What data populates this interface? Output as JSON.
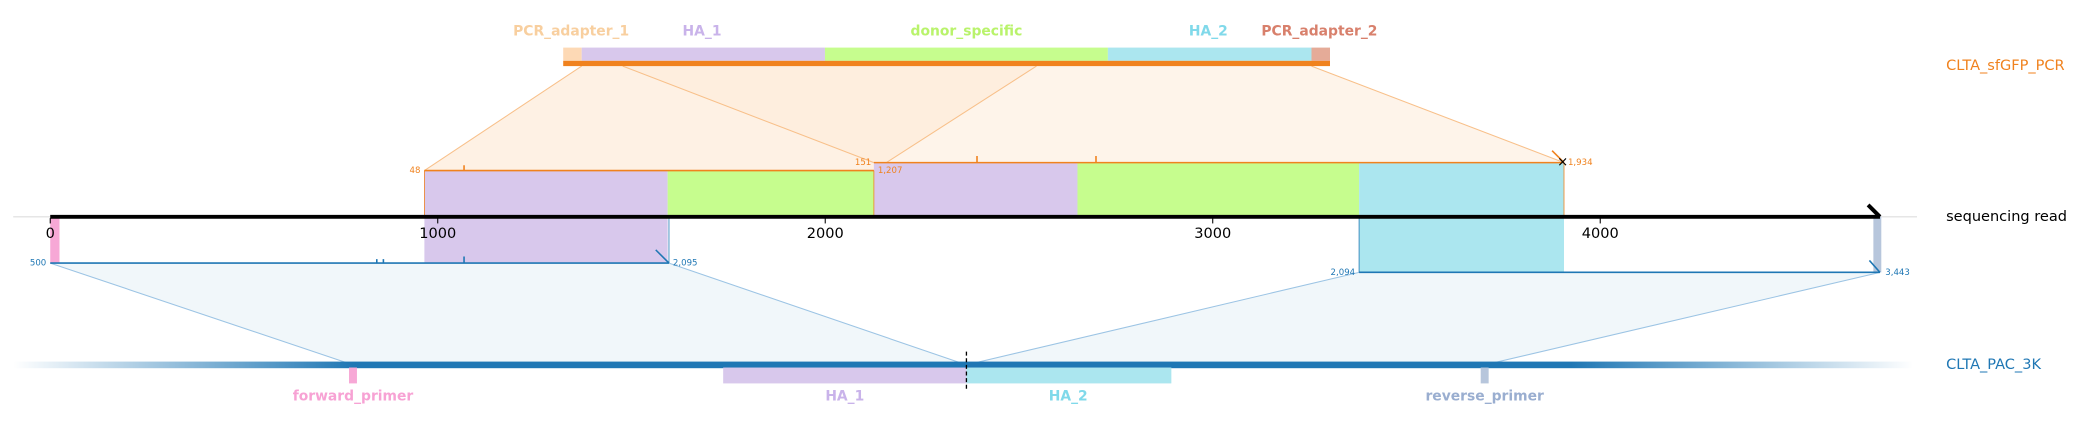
{
  "top_reference": {
    "name": "CLTA_sfGFP_PCR",
    "features": [
      "PCR_adapter_1",
      "HA_1",
      "donor_specific",
      "HA_2",
      "PCR_adapter_2"
    ]
  },
  "read": {
    "name": "sequencing read",
    "ticks": [
      0,
      1000,
      2000,
      3000,
      4000
    ]
  },
  "bottom_reference": {
    "name": "CLTA_PAC_3K",
    "features": [
      "forward_primer",
      "HA_1",
      "HA_2",
      "reverse_primer"
    ]
  },
  "alignments": [
    {
      "start_label": "48",
      "end_label": "1,207"
    },
    {
      "start_label": "151",
      "end_label": "1,934"
    },
    {
      "start_label": "500",
      "end_label": "2,095"
    },
    {
      "start_label": "2,094",
      "end_label": "3,443"
    }
  ]
}
